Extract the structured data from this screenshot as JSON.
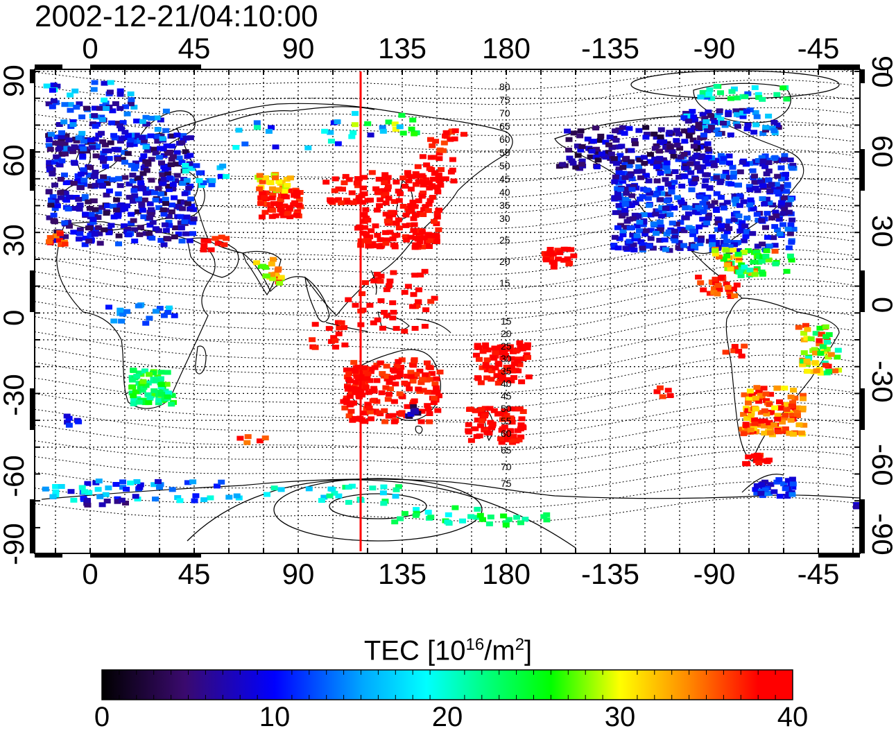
{
  "title": "2002-12-21/04:10:00",
  "map": {
    "lon_ticks": [
      "0",
      "45",
      "90",
      "135",
      "180",
      "-135",
      "-90",
      "-45"
    ],
    "lat_ticks": [
      "90",
      "60",
      "30",
      "0",
      "-30",
      "-60",
      "-90"
    ],
    "contour_labels_north": [
      "80",
      "75",
      "70",
      "65",
      "60",
      "55",
      "50",
      "45",
      "40",
      "35",
      "30",
      "25",
      "20",
      "15"
    ],
    "contour_labels_south": [
      "15",
      "20",
      "25",
      "30",
      "35",
      "40",
      "45",
      "50",
      "55",
      "60",
      "65",
      "70",
      "75"
    ],
    "marker_line_color": "#ff0000"
  },
  "colorbar": {
    "label_prefix": "TEC  [10",
    "label_exp1": "16",
    "label_mid": "/m",
    "label_exp2": "2",
    "label_suffix": "]",
    "ticks": [
      "0",
      "10",
      "20",
      "30",
      "40"
    ],
    "range": [
      0,
      40
    ]
  }
}
